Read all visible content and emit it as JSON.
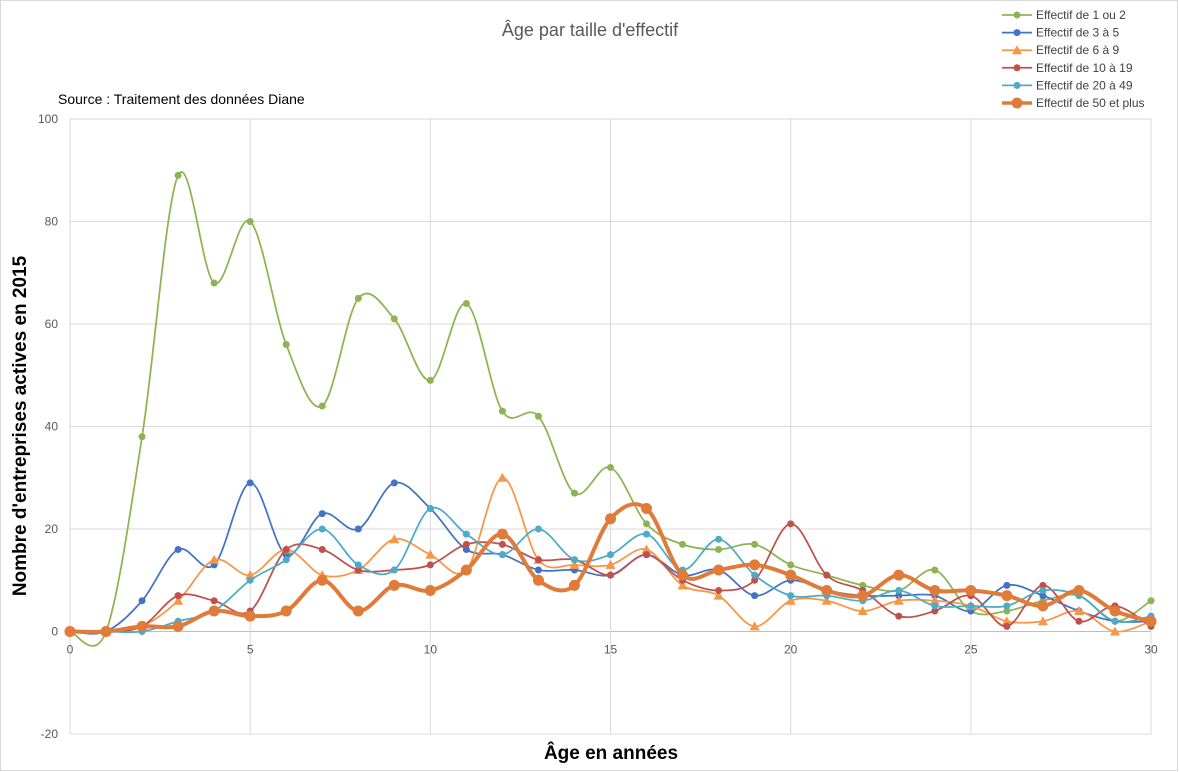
{
  "chart_data": {
    "type": "line",
    "title": "Âge par taille d'effectif",
    "subtitle": "Source : Traitement des données Diane",
    "xlabel": "Âge en années",
    "ylabel": "Nombre d'entreprises actives en 2015",
    "xlim": [
      0,
      30
    ],
    "ylim": [
      -20,
      100
    ],
    "x_ticks": [
      0,
      5,
      10,
      15,
      20,
      25,
      30
    ],
    "y_ticks": [
      -20,
      0,
      20,
      40,
      60,
      80,
      100
    ],
    "grid": true,
    "smooth": true,
    "legend_position": "top-right",
    "x": [
      0,
      1,
      2,
      3,
      4,
      5,
      6,
      7,
      8,
      9,
      10,
      11,
      12,
      13,
      14,
      15,
      16,
      17,
      18,
      19,
      20,
      21,
      22,
      23,
      24,
      25,
      26,
      27,
      28,
      29,
      30
    ],
    "series": [
      {
        "name": "Effectif de 1 ou 2",
        "color": "#8db452",
        "marker": "circle",
        "bold": false,
        "values": [
          0,
          0,
          38,
          89,
          68,
          80,
          56,
          44,
          65,
          61,
          49,
          64,
          43,
          42,
          27,
          32,
          21,
          17,
          16,
          17,
          13,
          11,
          9,
          8,
          12,
          4,
          4,
          6,
          7,
          2,
          6
        ]
      },
      {
        "name": "Effectif de 3 à 5",
        "color": "#4472c4",
        "marker": "circle",
        "bold": false,
        "values": [
          0,
          0,
          6,
          16,
          13,
          29,
          15,
          23,
          20,
          29,
          24,
          16,
          15,
          12,
          12,
          11,
          15,
          11,
          12,
          7,
          10,
          8,
          7,
          7,
          7,
          4,
          9,
          7,
          4,
          2,
          2
        ]
      },
      {
        "name": "Effectif de 6 à 9",
        "color": "#f79646",
        "marker": "triangle",
        "bold": false,
        "values": [
          0,
          0,
          1,
          6,
          14,
          11,
          16,
          11,
          12,
          18,
          15,
          12,
          30,
          14,
          13,
          13,
          16,
          9,
          7,
          1,
          6,
          6,
          4,
          6,
          6,
          5,
          2,
          2,
          4,
          0,
          2
        ]
      },
      {
        "name": "Effectif de 10 à 19",
        "color": "#c0504d",
        "marker": "circle",
        "bold": false,
        "values": [
          0,
          0,
          1,
          7,
          6,
          4,
          16,
          16,
          12,
          12,
          13,
          17,
          17,
          14,
          14,
          11,
          15,
          10,
          8,
          10,
          21,
          11,
          8,
          3,
          4,
          7,
          1,
          9,
          2,
          5,
          1
        ]
      },
      {
        "name": "Effectif de 20 à 49",
        "color": "#4bacc6",
        "marker": "circle",
        "bold": false,
        "values": [
          0,
          0,
          0,
          2,
          4,
          10,
          14,
          20,
          13,
          12,
          24,
          19,
          15,
          20,
          14,
          15,
          19,
          12,
          18,
          11,
          7,
          7,
          6,
          8,
          5,
          5,
          5,
          8,
          7,
          2,
          3
        ]
      },
      {
        "name": "Effectif de 50 et plus",
        "color": "#e07b39",
        "marker": "circle",
        "bold": true,
        "values": [
          0,
          0,
          1,
          1,
          4,
          3,
          4,
          10,
          4,
          9,
          8,
          12,
          19,
          10,
          9,
          22,
          24,
          11,
          12,
          13,
          11,
          8,
          7,
          11,
          8,
          8,
          7,
          5,
          8,
          4,
          2
        ]
      }
    ]
  }
}
